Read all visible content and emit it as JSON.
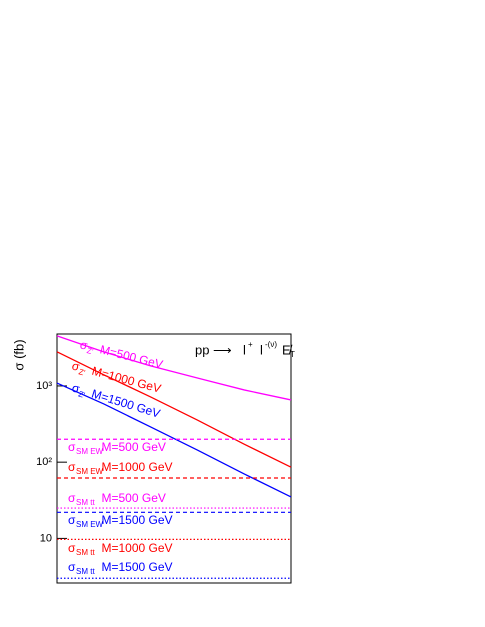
{
  "chart_data": {
    "type": "line",
    "ylabel": "σ (fb)",
    "log_y": true,
    "ylim": [
      2.6,
      4800
    ],
    "yticks": [
      {
        "value": 1000,
        "label": "10³"
      },
      {
        "value": 100,
        "label": "10²"
      },
      10
    ],
    "xlim": [
      0,
      5
    ],
    "process": {
      "initial": "pp",
      "arrow": "⟶",
      "l1": "l",
      "l1sup": "+",
      "l2": "l",
      "l2sup": "-(ν)",
      "met": "E̸",
      "metsub": "T"
    },
    "series": [
      {
        "name": "M=500 GeV",
        "sigma": "σ",
        "sub": "Z'",
        "color": "#ff00ff",
        "style": "solid",
        "x": [
          0,
          1,
          2,
          3,
          4,
          5
        ],
        "values": [
          4540,
          2800,
          1830,
          1270,
          886,
          655
        ]
      },
      {
        "name": "M=1000 GeV",
        "sigma": "σ",
        "sub": "Z'",
        "color": "#ff0000",
        "style": "solid",
        "x": [
          0,
          1,
          2,
          3,
          4,
          5
        ],
        "values": [
          2800,
          1400,
          717,
          357,
          172,
          86
        ]
      },
      {
        "name": "M=1500 GeV",
        "sigma": "σ",
        "sub": "Z'",
        "color": "#0000ff",
        "style": "solid",
        "x": [
          0,
          1,
          2,
          3,
          4,
          5
        ],
        "values": [
          1090,
          580,
          290,
          144,
          70,
          35
        ]
      },
      {
        "name": "M=500 GeV",
        "sigma": "σ",
        "sub": "SM EW",
        "color": "#ff00ff",
        "style": "dashed",
        "x": [
          0,
          5
        ],
        "values": [
          200,
          200
        ]
      },
      {
        "name": "M=1000 GeV",
        "sigma": "σ",
        "sub": "SM EW",
        "color": "#ff0000",
        "style": "dashed",
        "x": [
          0,
          5
        ],
        "values": [
          62,
          62
        ]
      },
      {
        "name": "M=500 GeV",
        "sigma": "σ",
        "sub": "SM tt",
        "color": "#ff00ff",
        "style": "dotted",
        "x": [
          0,
          5
        ],
        "values": [
          25,
          25
        ]
      },
      {
        "name": "M=1500 GeV",
        "sigma": "σ",
        "sub": "SM EW",
        "color": "#0000ff",
        "style": "dashed",
        "x": [
          0,
          5
        ],
        "values": [
          22,
          22
        ]
      },
      {
        "name": "M=1000 GeV",
        "sigma": "σ",
        "sub": "SM tt",
        "color": "#ff0000",
        "style": "dotted",
        "x": [
          0,
          5
        ],
        "values": [
          9.7,
          9.7
        ]
      },
      {
        "name": "M=1500 GeV",
        "sigma": "σ",
        "sub": "SM tt",
        "color": "#0000ff",
        "style": "dotted",
        "x": [
          0,
          5
        ],
        "values": [
          3.0,
          3.0
        ]
      }
    ]
  }
}
